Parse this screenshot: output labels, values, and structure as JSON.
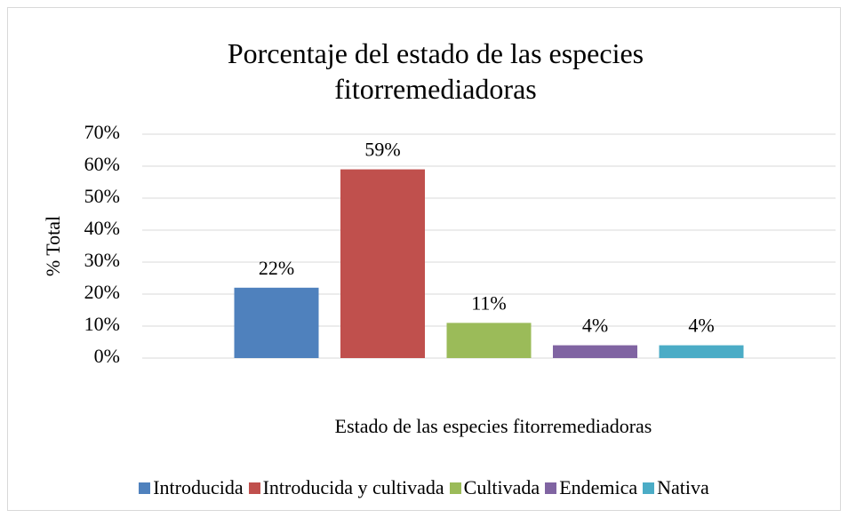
{
  "chart_data": {
    "type": "bar",
    "title": "Porcentaje del estado de las especies fitorremediadoras",
    "x_label": "Estado de las especies fitorremediadoras",
    "y_label": "% Total",
    "categories": [
      null
    ],
    "series": [
      {
        "name": "Introducida",
        "color": "#4f81bd",
        "values": [
          22
        ],
        "value_labels": [
          "22%"
        ]
      },
      {
        "name": "Introducida y cultivada",
        "color": "#c0504d",
        "values": [
          59
        ],
        "value_labels": [
          "59%"
        ]
      },
      {
        "name": "Cultivada",
        "color": "#9bbb59",
        "values": [
          11
        ],
        "value_labels": [
          "11%"
        ]
      },
      {
        "name": "Endemica",
        "color": "#8064a2",
        "values": [
          4
        ],
        "value_labels": [
          "4%"
        ]
      },
      {
        "name": "Nativa",
        "color": "#4bacc6",
        "values": [
          4
        ],
        "value_labels": [
          "4%"
        ]
      }
    ],
    "ylim": [
      0,
      70
    ],
    "yticks": [
      {
        "value": 0,
        "label": "0%"
      },
      {
        "value": 10,
        "label": "10%"
      },
      {
        "value": 20,
        "label": "20%"
      },
      {
        "value": 30,
        "label": "30%"
      },
      {
        "value": 40,
        "label": "40%"
      },
      {
        "value": 50,
        "label": "50%"
      },
      {
        "value": 60,
        "label": "60%"
      },
      {
        "value": 70,
        "label": "70%"
      }
    ],
    "grid": true,
    "legend": "bottom"
  }
}
